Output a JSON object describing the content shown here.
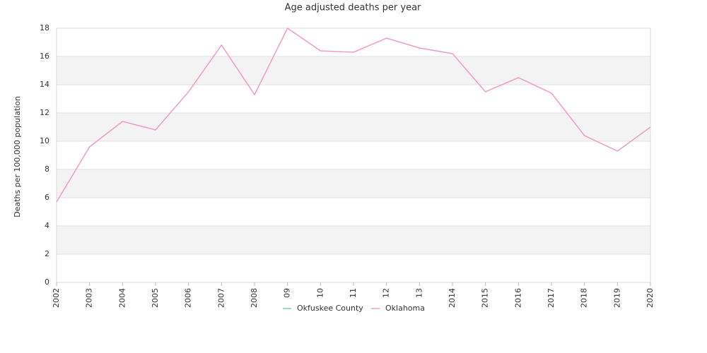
{
  "chart_data": {
    "type": "line",
    "title": "Age adjusted deaths per year",
    "y_label": "Deaths per 100,000 population",
    "categories": [
      "2002",
      "2003",
      "2004",
      "2005",
      "2006",
      "2007",
      "2008",
      "09",
      "10",
      "11",
      "12",
      "13",
      "2014",
      "2015",
      "2016",
      "2017",
      "2018",
      "2019",
      "2020"
    ],
    "series": [
      {
        "name": "Okfuskee County",
        "color": "#7fc6c6",
        "values": [
          null,
          null,
          null,
          null,
          null,
          null,
          null,
          null,
          null,
          null,
          null,
          null,
          null,
          null,
          null,
          null,
          null,
          null,
          null
        ]
      },
      {
        "name": "Oklahoma",
        "color": "#f09cc8",
        "values": [
          5.7,
          9.6,
          11.4,
          10.8,
          13.5,
          16.8,
          13.3,
          18.0,
          16.4,
          16.3,
          17.3,
          16.6,
          16.2,
          13.5,
          14.5,
          13.4,
          10.4,
          9.3,
          11.0
        ]
      }
    ],
    "ylim": [
      0,
      18
    ],
    "yticks": [
      0,
      2,
      4,
      6,
      8,
      10,
      12,
      14,
      16,
      18
    ],
    "grid": true
  }
}
